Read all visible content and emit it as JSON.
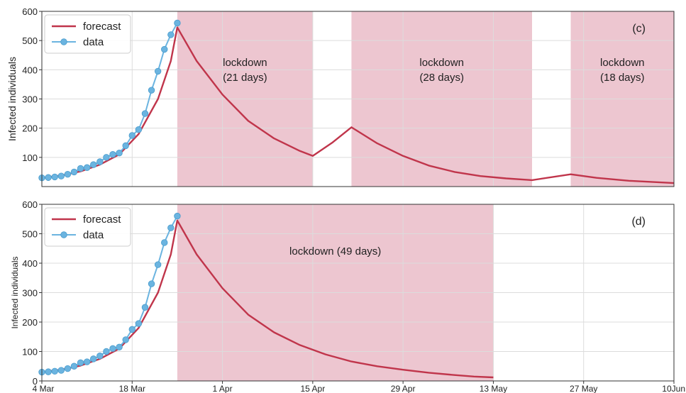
{
  "chart_data": [
    {
      "type": "line",
      "panel_label": "(c)",
      "ylabel": "Infected individuals",
      "xlabel": "",
      "ylim": [
        0,
        600
      ],
      "yticks": [
        100,
        200,
        300,
        400,
        500,
        600
      ],
      "xlim": [
        "2020-03-04",
        "2020-06-10"
      ],
      "grid": true,
      "legend": {
        "position": "top-left",
        "entries": [
          "forecast",
          "data"
        ]
      },
      "lockdowns": [
        {
          "label_line1": "lockdown",
          "label_line2": "(21 days)",
          "start": "2020-03-25",
          "end": "2020-04-15"
        },
        {
          "label_line1": "lockdown",
          "label_line2": "(28 days)",
          "start": "2020-04-21",
          "end": "2020-05-19"
        },
        {
          "label_line1": "lockdown",
          "label_line2": "(18 days)",
          "start": "2020-05-25",
          "end": "2020-06-10"
        }
      ],
      "series": [
        {
          "name": "forecast",
          "color": "#c0354b",
          "points": [
            [
              "2020-03-04",
              30
            ],
            [
              "2020-03-07",
              38
            ],
            [
              "2020-03-10",
              52
            ],
            [
              "2020-03-13",
              75
            ],
            [
              "2020-03-16",
              110
            ],
            [
              "2020-03-19",
              180
            ],
            [
              "2020-03-22",
              300
            ],
            [
              "2020-03-24",
              430
            ],
            [
              "2020-03-25",
              545
            ],
            [
              "2020-03-28",
              430
            ],
            [
              "2020-04-01",
              315
            ],
            [
              "2020-04-05",
              225
            ],
            [
              "2020-04-09",
              165
            ],
            [
              "2020-04-13",
              122
            ],
            [
              "2020-04-15",
              105
            ],
            [
              "2020-04-18",
              150
            ],
            [
              "2020-04-21",
              203
            ],
            [
              "2020-04-25",
              148
            ],
            [
              "2020-04-29",
              105
            ],
            [
              "2020-05-03",
              72
            ],
            [
              "2020-05-07",
              50
            ],
            [
              "2020-05-11",
              36
            ],
            [
              "2020-05-15",
              28
            ],
            [
              "2020-05-19",
              22
            ],
            [
              "2020-05-25",
              42
            ],
            [
              "2020-05-29",
              30
            ],
            [
              "2020-06-03",
              20
            ],
            [
              "2020-06-10",
              12
            ]
          ]
        },
        {
          "name": "data",
          "color": "#6bb4e0",
          "points": [
            [
              "2020-03-04",
              30
            ],
            [
              "2020-03-05",
              31
            ],
            [
              "2020-03-06",
              33
            ],
            [
              "2020-03-07",
              36
            ],
            [
              "2020-03-08",
              42
            ],
            [
              "2020-03-09",
              50
            ],
            [
              "2020-03-10",
              62
            ],
            [
              "2020-03-11",
              65
            ],
            [
              "2020-03-12",
              75
            ],
            [
              "2020-03-13",
              85
            ],
            [
              "2020-03-14",
              100
            ],
            [
              "2020-03-15",
              110
            ],
            [
              "2020-03-16",
              115
            ],
            [
              "2020-03-17",
              140
            ],
            [
              "2020-03-18",
              175
            ],
            [
              "2020-03-19",
              195
            ],
            [
              "2020-03-20",
              250
            ],
            [
              "2020-03-21",
              330
            ],
            [
              "2020-03-22",
              395
            ],
            [
              "2020-03-23",
              470
            ],
            [
              "2020-03-24",
              520
            ],
            [
              "2020-03-25",
              560
            ]
          ]
        }
      ]
    },
    {
      "type": "line",
      "panel_label": "(d)",
      "ylabel": "Infected individuals",
      "xlabel": "",
      "ylim": [
        0,
        600
      ],
      "yticks": [
        0,
        100,
        200,
        300,
        400,
        500,
        600
      ],
      "xlim": [
        "2020-03-04",
        "2020-06-10"
      ],
      "xticks": [
        "4 Mar",
        "18 Mar",
        "1 Apr",
        "15 Apr",
        "29 Apr",
        "13 May",
        "27 May",
        "10Jun"
      ],
      "grid": true,
      "legend": {
        "position": "top-left",
        "entries": [
          "forecast",
          "data"
        ]
      },
      "lockdowns": [
        {
          "label_line1": "lockdown (49 days)",
          "label_line2": "",
          "start": "2020-03-25",
          "end": "2020-05-13"
        }
      ],
      "series": [
        {
          "name": "forecast",
          "color": "#c0354b",
          "points": [
            [
              "2020-03-04",
              30
            ],
            [
              "2020-03-07",
              38
            ],
            [
              "2020-03-10",
              52
            ],
            [
              "2020-03-13",
              75
            ],
            [
              "2020-03-16",
              110
            ],
            [
              "2020-03-19",
              180
            ],
            [
              "2020-03-22",
              300
            ],
            [
              "2020-03-24",
              430
            ],
            [
              "2020-03-25",
              545
            ],
            [
              "2020-03-28",
              430
            ],
            [
              "2020-04-01",
              315
            ],
            [
              "2020-04-05",
              225
            ],
            [
              "2020-04-09",
              165
            ],
            [
              "2020-04-13",
              122
            ],
            [
              "2020-04-17",
              90
            ],
            [
              "2020-04-21",
              66
            ],
            [
              "2020-04-25",
              50
            ],
            [
              "2020-04-29",
              38
            ],
            [
              "2020-05-03",
              28
            ],
            [
              "2020-05-07",
              20
            ],
            [
              "2020-05-10",
              15
            ],
            [
              "2020-05-13",
              12
            ]
          ]
        },
        {
          "name": "data",
          "color": "#6bb4e0",
          "points": [
            [
              "2020-03-04",
              30
            ],
            [
              "2020-03-05",
              31
            ],
            [
              "2020-03-06",
              33
            ],
            [
              "2020-03-07",
              36
            ],
            [
              "2020-03-08",
              42
            ],
            [
              "2020-03-09",
              50
            ],
            [
              "2020-03-10",
              62
            ],
            [
              "2020-03-11",
              65
            ],
            [
              "2020-03-12",
              75
            ],
            [
              "2020-03-13",
              85
            ],
            [
              "2020-03-14",
              100
            ],
            [
              "2020-03-15",
              110
            ],
            [
              "2020-03-16",
              115
            ],
            [
              "2020-03-17",
              140
            ],
            [
              "2020-03-18",
              175
            ],
            [
              "2020-03-19",
              195
            ],
            [
              "2020-03-20",
              250
            ],
            [
              "2020-03-21",
              330
            ],
            [
              "2020-03-22",
              395
            ],
            [
              "2020-03-23",
              470
            ],
            [
              "2020-03-24",
              520
            ],
            [
              "2020-03-25",
              560
            ]
          ]
        }
      ]
    }
  ],
  "colors": {
    "lockdown_fill": "#edc6d0",
    "grid": "#dcdcdc",
    "axis": "#333333"
  }
}
